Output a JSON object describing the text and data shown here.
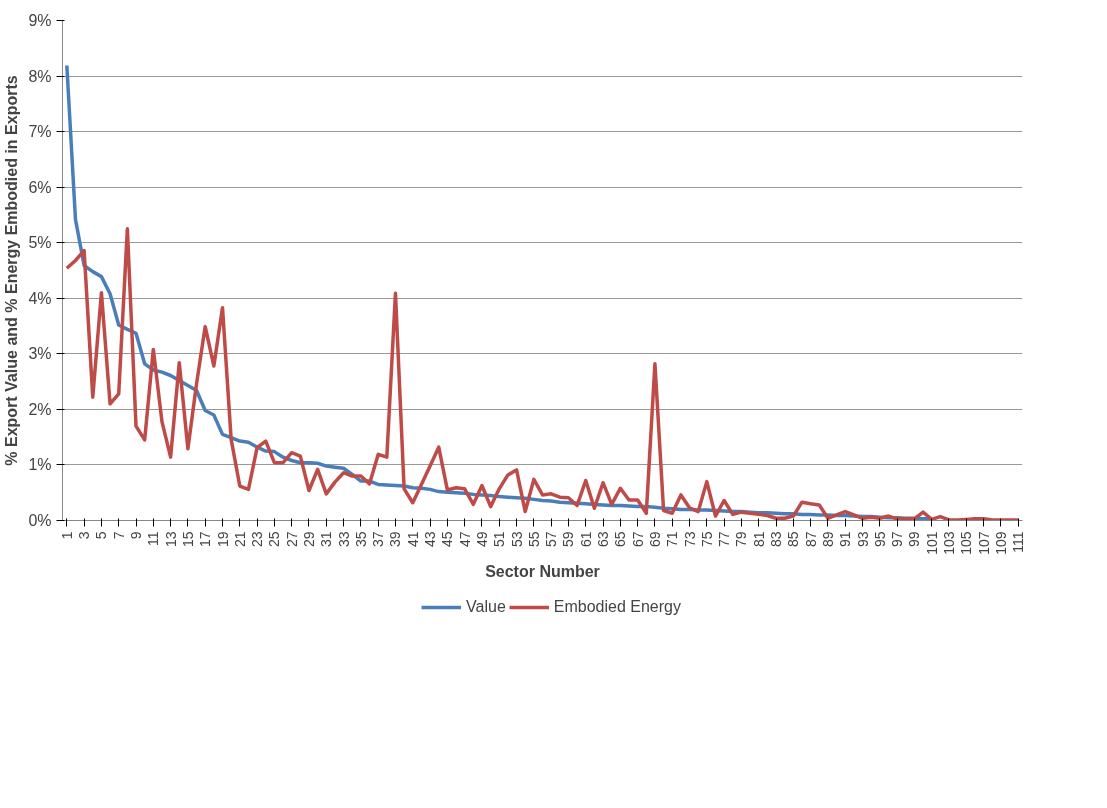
{
  "chart_data": {
    "type": "line",
    "xlabel": "Sector Number",
    "ylabel": "% Export Value and % Energy Embodied in Exports",
    "categories": [
      "1",
      null,
      "3",
      null,
      "5",
      null,
      "7",
      null,
      "9",
      null,
      "11",
      null,
      "13",
      null,
      "15",
      null,
      "17",
      null,
      "19",
      null,
      "21",
      null,
      "23",
      null,
      "25",
      null,
      "27",
      null,
      "29",
      null,
      "31",
      null,
      "33",
      null,
      "35",
      null,
      "37",
      null,
      "39",
      null,
      "41",
      null,
      "43",
      null,
      "45",
      null,
      "47",
      null,
      "49",
      null,
      "51",
      null,
      "53",
      null,
      "55",
      null,
      "57",
      null,
      "59",
      null,
      "61",
      null,
      "63",
      null,
      "65",
      null,
      "67",
      null,
      "69",
      null,
      "71",
      null,
      "73",
      null,
      "75",
      null,
      "77",
      null,
      "79",
      null,
      "81",
      null,
      "83",
      null,
      "85",
      null,
      "87",
      null,
      "89",
      null,
      "91",
      null,
      "93",
      null,
      "95",
      null,
      "97",
      null,
      "99",
      null,
      "101",
      null,
      "103",
      null,
      "105",
      null,
      "107",
      null,
      "109",
      null,
      "111"
    ],
    "series": [
      {
        "name": "Value",
        "color": "#4a7ebb",
        "values": [
          8.19,
          5.42,
          4.59,
          4.48,
          4.39,
          4.08,
          3.52,
          3.44,
          3.37,
          2.82,
          2.71,
          2.67,
          2.61,
          2.52,
          2.43,
          2.34,
          1.98,
          1.9,
          1.55,
          1.49,
          1.43,
          1.41,
          1.32,
          1.25,
          1.24,
          1.14,
          1.08,
          1.04,
          1.04,
          1.03,
          0.98,
          0.96,
          0.94,
          0.83,
          0.71,
          0.71,
          0.65,
          0.64,
          0.63,
          0.62,
          0.59,
          0.58,
          0.56,
          0.52,
          0.51,
          0.5,
          0.49,
          0.47,
          0.46,
          0.45,
          0.43,
          0.42,
          0.41,
          0.4,
          0.38,
          0.36,
          0.35,
          0.33,
          0.32,
          0.31,
          0.3,
          0.29,
          0.28,
          0.27,
          0.27,
          0.26,
          0.25,
          0.25,
          0.24,
          0.22,
          0.21,
          0.2,
          0.2,
          0.19,
          0.19,
          0.18,
          0.17,
          0.16,
          0.16,
          0.15,
          0.14,
          0.14,
          0.13,
          0.12,
          0.12,
          0.11,
          0.11,
          0.1,
          0.1,
          0.09,
          0.09,
          0.08,
          0.07,
          0.07,
          0.06,
          0.05,
          0.05,
          0.04,
          0.04,
          0.03,
          0.03,
          null,
          null,
          null,
          null,
          null,
          null,
          null,
          null,
          null,
          null
        ]
      },
      {
        "name": "Embodied Energy",
        "color": "#be4b48",
        "values": [
          4.54,
          4.68,
          4.86,
          2.22,
          4.1,
          2.1,
          2.28,
          5.25,
          1.7,
          1.45,
          3.08,
          1.78,
          1.14,
          2.84,
          1.29,
          2.46,
          3.49,
          2.78,
          3.83,
          1.46,
          0.62,
          0.56,
          1.31,
          1.43,
          1.04,
          1.04,
          1.22,
          1.16,
          0.54,
          0.92,
          0.48,
          0.69,
          0.86,
          0.8,
          0.8,
          0.66,
          1.19,
          1.14,
          4.09,
          0.57,
          0.32,
          0.65,
          0.98,
          1.32,
          0.55,
          0.59,
          0.57,
          0.29,
          0.63,
          0.25,
          0.57,
          0.82,
          0.91,
          0.16,
          0.74,
          0.46,
          0.48,
          0.42,
          0.41,
          0.27,
          0.72,
          0.22,
          0.68,
          0.29,
          0.58,
          0.37,
          0.37,
          0.13,
          2.82,
          0.18,
          0.13,
          0.46,
          0.23,
          0.16,
          0.7,
          0.08,
          0.36,
          0.11,
          0.15,
          0.13,
          0.11,
          0.09,
          0.04,
          0.04,
          0.08,
          0.33,
          0.3,
          0.28,
          0.04,
          0.1,
          0.16,
          0.1,
          0.04,
          0.06,
          0.04,
          0.08,
          0.03,
          0.03,
          0.03,
          0.15,
          0.02,
          0.07,
          0.01,
          0.01,
          0.02,
          0.03,
          0.03,
          0.01,
          0.01,
          0.01,
          0.01
        ]
      }
    ],
    "ylim": [
      0,
      9
    ],
    "yticks": [
      {
        "value": 0,
        "label": "0%"
      },
      {
        "value": 1,
        "label": "1%"
      },
      {
        "value": 2,
        "label": "2%"
      },
      {
        "value": 3,
        "label": "3%"
      },
      {
        "value": 4,
        "label": "4%"
      },
      {
        "value": 5,
        "label": "5%"
      },
      {
        "value": 6,
        "label": "6%"
      },
      {
        "value": 7,
        "label": "7%"
      },
      {
        "value": 8,
        "label": "8%"
      },
      {
        "value": 9,
        "label": "9%"
      }
    ],
    "grid": "y",
    "legend": "bottom",
    "marker": "none",
    "line_style": "solid"
  }
}
